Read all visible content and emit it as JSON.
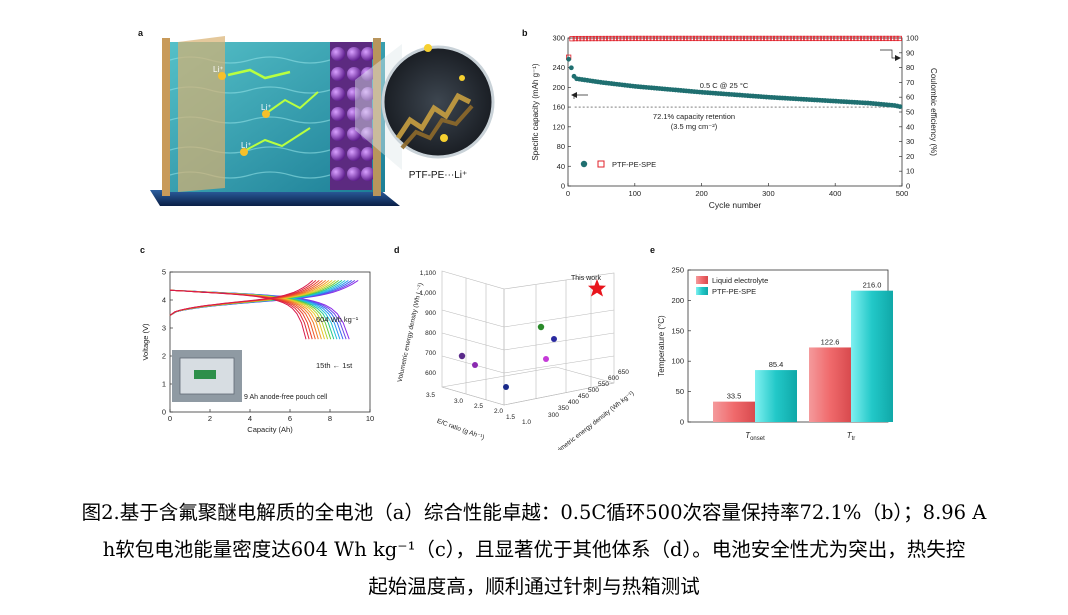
{
  "panels": {
    "a": {
      "label": "a",
      "li_labels": [
        "Li⁺",
        "Li⁺",
        "Li⁺"
      ],
      "inset_label": "PTF-PE⋯Li⁺"
    },
    "b": {
      "label": "b",
      "ylabel_left": "Specific capacity (mAh g⁻¹)",
      "ylabel_right": "Coulombic efficiency (%)",
      "xlabel": "Cycle number",
      "annotation_rate": "0.5 C @ 25 °C",
      "annotation_retention": "72.1% capacity retention",
      "annotation_loading": "(3.5 mg cm⁻²)",
      "legend": "PTF-PE-SPE",
      "x_ticks": [
        "0",
        "100",
        "200",
        "300",
        "400",
        "500"
      ],
      "yl_ticks": [
        "0",
        "40",
        "80",
        "120",
        "160",
        "200",
        "240",
        "300"
      ],
      "yr_ticks": [
        "0",
        "10",
        "20",
        "30",
        "40",
        "50",
        "60",
        "70",
        "80",
        "90",
        "100"
      ]
    },
    "c": {
      "label": "c",
      "ylabel": "Voltage (V)",
      "xlabel": "Capacity (Ah)",
      "energy_label": "604 Wh kg⁻¹",
      "cycle_label": "15th ← 1st",
      "photo_label": "9 Ah anode-free pouch cell",
      "x_ticks": [
        "0",
        "2",
        "4",
        "6",
        "8",
        "10"
      ],
      "y_ticks": [
        "0",
        "1",
        "2",
        "3",
        "4",
        "5"
      ]
    },
    "d": {
      "label": "d",
      "zlabel": "Volumetric energy density (Wh L⁻¹)",
      "xlabel": "E/C ratio (g Ah⁻¹)",
      "ylabel": "Gravimetric energy density (Wh kg⁻¹)",
      "this_work": "This work",
      "z_ticks": [
        "600",
        "700",
        "800",
        "900",
        "1,000",
        "1,100"
      ],
      "x_ticks": [
        "3.5",
        "3.0",
        "2.5",
        "2.0",
        "1.5",
        "1.0"
      ],
      "y_ticks": [
        "300",
        "350",
        "400",
        "450",
        "500",
        "550",
        "600",
        "650"
      ]
    },
    "e": {
      "label": "e",
      "ylabel": "Temperature (°C)",
      "legend_liquid": "Liquid electrolyte",
      "legend_ptf": "PTF-PE-SPE",
      "y_ticks": [
        "0",
        "50",
        "100",
        "150",
        "200",
        "250"
      ],
      "cat1_main": "T",
      "cat1_sub": "onset",
      "cat2_main": "T",
      "cat2_sub": "tr",
      "val_labels": [
        "33.5",
        "85.4",
        "122.6",
        "216.0"
      ]
    }
  },
  "chart_data": [
    {
      "panel": "b",
      "type": "scatter",
      "xlabel": "Cycle number",
      "ylabel": "Specific capacity (mAh g⁻¹)",
      "y2label": "Coulombic efficiency (%)",
      "xlim": [
        0,
        500
      ],
      "ylim": [
        0,
        300
      ],
      "y2lim": [
        0,
        100
      ],
      "series": [
        {
          "name": "PTF-PE-SPE",
          "axis": "left",
          "x": [
            1,
            10,
            50,
            100,
            150,
            200,
            250,
            300,
            350,
            400,
            450,
            490,
            500
          ],
          "values": [
            257,
            218,
            210,
            202,
            196,
            190,
            185,
            180,
            176,
            172,
            168,
            163,
            160
          ]
        },
        {
          "axis": "right",
          "x": [
            1,
            5,
            10,
            100,
            200,
            300,
            400,
            490,
            500
          ],
          "values": [
            87,
            99.5,
            99.6,
            99.7,
            99.7,
            99.7,
            99.7,
            99.7,
            99.7
          ]
        }
      ],
      "reference_line": 160
    },
    {
      "panel": "c",
      "type": "line",
      "xlabel": "Capacity (Ah)",
      "ylabel": "Voltage (V)",
      "xlim": [
        0,
        10
      ],
      "ylim": [
        0,
        5
      ],
      "series": [
        {
          "name": "1st",
          "capacity": 8.96
        },
        {
          "name": "15th",
          "capacity": 6.8
        }
      ]
    },
    {
      "panel": "d",
      "type": "scatter",
      "xlabel": "E/C ratio (g Ah⁻¹)",
      "ylabel": "Gravimetric energy density (Wh kg⁻¹)",
      "zlabel": "Volumetric energy density (Wh L⁻¹)",
      "this_work_marker": "star"
    },
    {
      "panel": "e",
      "type": "bar",
      "ylabel": "Temperature (°C)",
      "categories": [
        "T_onset",
        "T_tr"
      ],
      "ylim": [
        0,
        250
      ],
      "series": [
        {
          "name": "Liquid electrolyte",
          "values": [
            33.5,
            122.6
          ],
          "color": "#f0787a"
        },
        {
          "name": "PTF-PE-SPE",
          "values": [
            85.4,
            216.0
          ],
          "color": "#2ad0d0"
        }
      ]
    }
  ],
  "caption": {
    "line1": "图2.基于含氟聚醚电解质的全电池（a）综合性能卓越：0.5C循环500次容量保持率72.1%（b）；8.96 A",
    "line2": "h软包电池能量密度达604 Wh kg⁻¹（c），且显著优于其他体系（d）。电池安全性尤为突出，热失控",
    "line3": "起始温度高，顺利通过针刺与热箱测试"
  },
  "colors": {
    "teal_marker": "#1f6f70",
    "red_marker": "#e0202a",
    "bar_red": "#f0787a",
    "bar_cyan": "#2ad0d0",
    "star": "#e8141c"
  }
}
